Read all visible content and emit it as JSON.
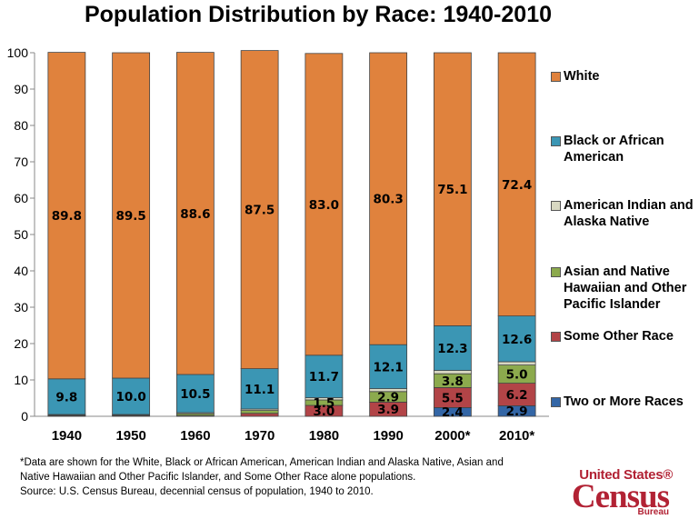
{
  "title": "Population Distribution by Race: 1940-2010",
  "chart_data": {
    "type": "bar",
    "stacked": true,
    "categories": [
      "1940",
      "1950",
      "1960",
      "1970",
      "1980",
      "1990",
      "2000*",
      "2010*"
    ],
    "ylim": [
      0,
      100
    ],
    "yticks": [
      0,
      10,
      20,
      30,
      40,
      50,
      60,
      70,
      80,
      90,
      100
    ],
    "legend_position": "right",
    "series": [
      {
        "name": "Two or More Races",
        "color": "#3366a6",
        "values": [
          0,
          0,
          0,
          0,
          0,
          0,
          2.4,
          2.9
        ],
        "labels": [
          "",
          "",
          "",
          "",
          "",
          "",
          "2.4",
          "2.9"
        ]
      },
      {
        "name": "Some Other Race",
        "color": "#b24447",
        "values": [
          0.2,
          0.1,
          0.2,
          0.8,
          3.0,
          3.9,
          5.5,
          6.2
        ],
        "labels": [
          "",
          "",
          "",
          "",
          "3.0",
          "3.9",
          "5.5",
          "6.2"
        ]
      },
      {
        "name": "Asian and Native Hawaiian and Other Pacific Islander",
        "color": "#8caa4d",
        "values": [
          0.1,
          0.2,
          0.5,
          0.8,
          1.5,
          2.9,
          3.8,
          5.0
        ],
        "labels": [
          "",
          "",
          "",
          "",
          "1.5",
          "2.9",
          "3.8",
          "5.0"
        ]
      },
      {
        "name": "American Indian and Alaska Native",
        "color": "#d8d8c2",
        "values": [
          0.2,
          0.2,
          0.3,
          0.4,
          0.6,
          0.8,
          0.9,
          0.9
        ],
        "labels": [
          "",
          "",
          "",
          "",
          "",
          "",
          "",
          ""
        ]
      },
      {
        "name": "Black or African American",
        "color": "#3b96b4",
        "values": [
          9.8,
          10.0,
          10.5,
          11.1,
          11.7,
          12.1,
          12.3,
          12.6
        ],
        "labels": [
          "9.8",
          "10.0",
          "10.5",
          "11.1",
          "11.7",
          "12.1",
          "12.3",
          "12.6"
        ]
      },
      {
        "name": "White",
        "color": "#e0823d",
        "values": [
          89.8,
          89.5,
          88.6,
          87.5,
          83.0,
          80.3,
          75.1,
          72.4
        ],
        "labels": [
          "89.8",
          "89.5",
          "88.6",
          "87.5",
          "83.0",
          "80.3",
          "75.1",
          "72.4"
        ]
      }
    ]
  },
  "legend": [
    {
      "label": "White",
      "color": "#e0823d"
    },
    {
      "label": "Black or African American",
      "color": "#3b96b4"
    },
    {
      "label": "American Indian and Alaska Native",
      "color": "#d8d8c2"
    },
    {
      "label": "Asian and Native Hawaiian and Other Pacific Islander",
      "color": "#8caa4d"
    },
    {
      "label": "Some Other Race",
      "color": "#b24447"
    },
    {
      "label": "Two or More Races",
      "color": "#3366a6"
    }
  ],
  "footnote": {
    "line1": "*Data are shown for the White, Black or African American, American Indian and Alaska Native, Asian and",
    "line2": "Native Hawaiian and Other Pacific Islander, and Some Other Race alone populations.",
    "line3": "Source: U.S. Census Bureau, decennial census of population, 1940 to 2010."
  },
  "logo": {
    "top": "United States®",
    "main": "Census",
    "sub": "Bureau"
  }
}
